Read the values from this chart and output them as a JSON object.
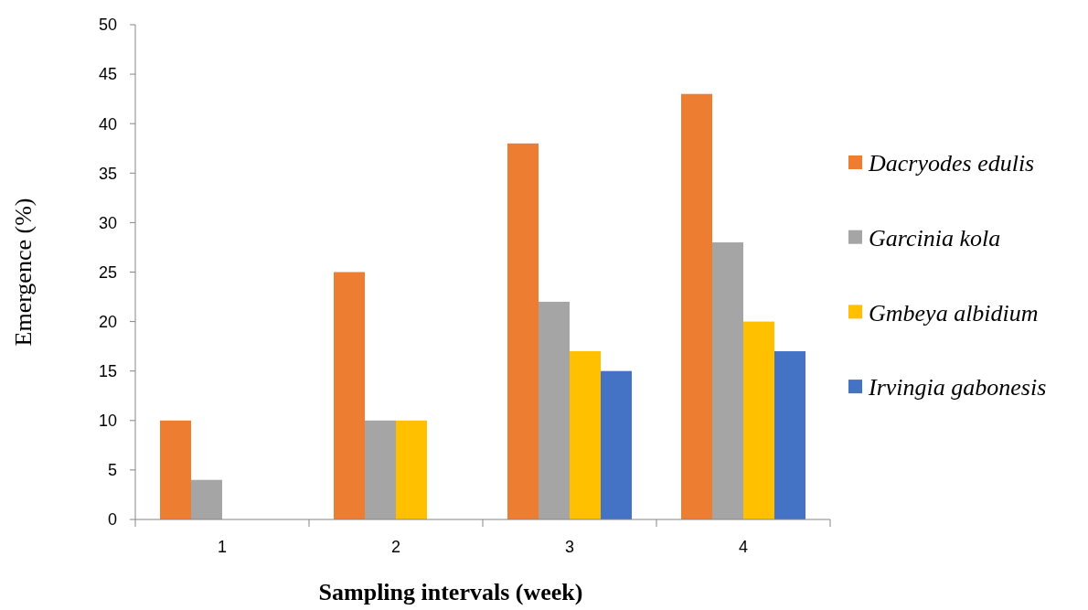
{
  "chart_data": {
    "type": "bar",
    "xlabel": "Sampling intervals (week)",
    "ylabel": "Emergence (%)",
    "categories": [
      "1",
      "2",
      "3",
      "4"
    ],
    "series": [
      {
        "name": "Dacryodes edulis",
        "color": "#ed7d31",
        "values": [
          10,
          25,
          38,
          43
        ]
      },
      {
        "name": "Garcinia kola",
        "color": "#a5a5a5",
        "values": [
          4,
          10,
          22,
          28
        ]
      },
      {
        "name": "Gmbeya albidium",
        "color": "#ffc000",
        "values": [
          0,
          10,
          17,
          20
        ]
      },
      {
        "name": "Irvingia gabonesis",
        "color": "#4472c4",
        "values": [
          0,
          0,
          15,
          17
        ]
      }
    ],
    "ylim": [
      0,
      50
    ],
    "yticks": [
      0,
      5,
      10,
      15,
      20,
      25,
      30,
      35,
      40,
      45,
      50
    ],
    "grid": false,
    "legend": "right"
  }
}
